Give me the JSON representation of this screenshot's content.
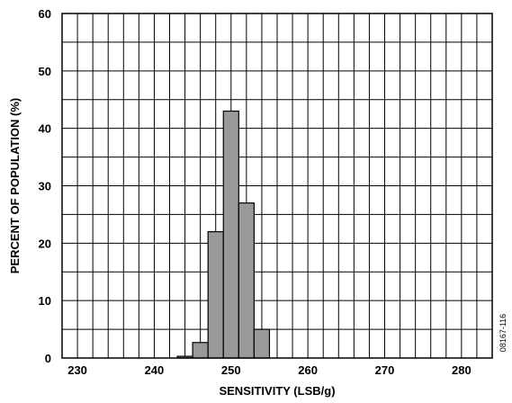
{
  "chart_data": {
    "type": "bar",
    "title": "",
    "xlabel": "SENSITIVITY (LSB/g)",
    "ylabel": "PERCENT OF POPULATION (%)",
    "xlim": [
      228,
      284
    ],
    "ylim": [
      0,
      60
    ],
    "x_ticks": [
      "230",
      "240",
      "250",
      "260",
      "270",
      "280"
    ],
    "y_ticks": [
      "0",
      "10",
      "20",
      "30",
      "40",
      "50",
      "60"
    ],
    "grid": true,
    "bar_color": "#999999",
    "bin_width": 2,
    "bins": [
      {
        "x0": 243,
        "value": 0.3
      },
      {
        "x0": 245,
        "value": 2.7
      },
      {
        "x0": 247,
        "value": 22
      },
      {
        "x0": 249,
        "value": 43
      },
      {
        "x0": 251,
        "value": 27
      },
      {
        "x0": 253,
        "value": 5
      }
    ]
  },
  "figure_id": "08167-116"
}
